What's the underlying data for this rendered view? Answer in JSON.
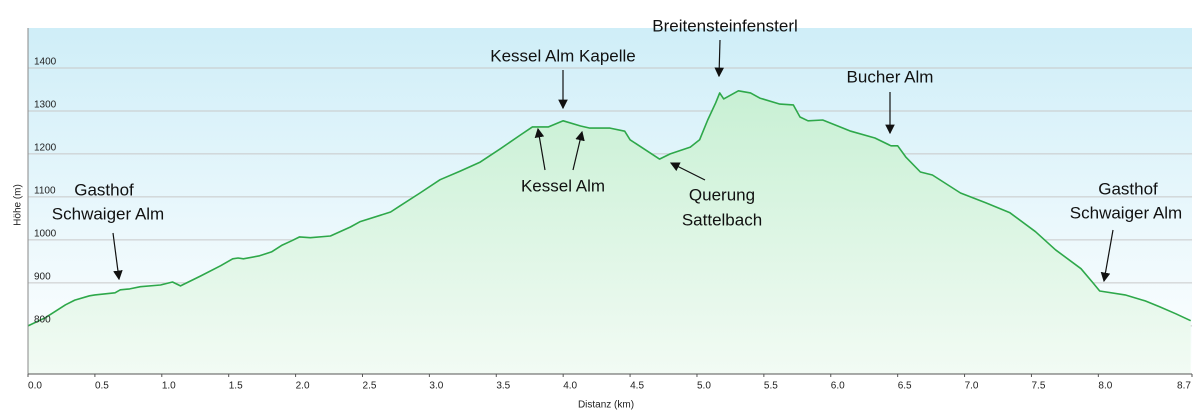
{
  "chart_data": {
    "type": "line",
    "xlabel": "Distanz  (km)",
    "ylabel": "Höhe (m)",
    "xlim": [
      0,
      8.7
    ],
    "ylim": [
      688,
      1493
    ],
    "xticks": [
      {
        "value": 0,
        "label": "0.0"
      },
      0.5,
      {
        "value": 1,
        "label": "1.0"
      },
      1.5,
      {
        "value": 2,
        "label": "2.0"
      },
      2.5,
      {
        "value": 3,
        "label": "3.0"
      },
      3.5,
      {
        "value": 4,
        "label": "4.0"
      },
      4.5,
      {
        "value": 5,
        "label": "5.0"
      },
      5.5,
      {
        "value": 6,
        "label": "6.0"
      },
      6.5,
      {
        "value": 7,
        "label": "7.0"
      },
      7.5,
      {
        "value": 8,
        "label": "8.0"
      },
      8.7
    ],
    "yticks": [
      800,
      900,
      1000,
      1100,
      1200,
      1300,
      1400
    ],
    "grid": true,
    "series": [
      {
        "color": "#2ea84a",
        "x": [
          0,
          0.13,
          0.28,
          0.35,
          0.46,
          0.5,
          0.65,
          0.69,
          0.76,
          0.84,
          0.99,
          1.08,
          1.14,
          1.29,
          1.44,
          1.53,
          1.57,
          1.61,
          1.73,
          1.82,
          1.9,
          1.97,
          2.03,
          2.11,
          2.26,
          2.41,
          2.48,
          2.71,
          2.78,
          2.93,
          3.08,
          3.23,
          3.38,
          3.53,
          3.68,
          3.77,
          3.89,
          4.0,
          4.13,
          4.2,
          4.35,
          4.46,
          4.5,
          4.72,
          4.8,
          4.95,
          5.02,
          5.08,
          5.14,
          5.17,
          5.2,
          5.31,
          5.4,
          5.47,
          5.62,
          5.72,
          5.77,
          5.83,
          5.94,
          6.15,
          6.33,
          6.45,
          6.5,
          6.56,
          6.67,
          6.76,
          6.97,
          7.16,
          7.34,
          7.53,
          7.68,
          7.87,
          7.96,
          8.01,
          8.2,
          8.35,
          8.46,
          8.58,
          8.69
        ],
        "values": [
          800,
          819,
          849,
          860,
          870,
          872,
          877,
          884,
          886,
          891,
          895,
          902,
          893,
          916,
          940,
          956,
          958,
          956,
          963,
          972,
          988,
          998,
          1007,
          1005,
          1009,
          1030,
          1042,
          1065,
          1079,
          1109,
          1140,
          1160,
          1181,
          1212,
          1244,
          1263,
          1263,
          1277,
          1265,
          1260,
          1260,
          1253,
          1233,
          1188,
          1200,
          1216,
          1233,
          1279,
          1319,
          1342,
          1328,
          1347,
          1342,
          1330,
          1316,
          1314,
          1286,
          1277,
          1279,
          1253,
          1237,
          1219,
          1219,
          1193,
          1158,
          1151,
          1109,
          1086,
          1063,
          1019,
          977,
          933,
          900,
          881,
          872,
          858,
          844,
          828,
          812
        ]
      }
    ],
    "annotations": [
      {
        "lines": [
          "Gasthof",
          "Schwaiger Alm"
        ]
      },
      {
        "lines": [
          "Kessel Alm Kapelle"
        ]
      },
      {
        "lines": [
          "Breitensteinfensterl"
        ]
      },
      {
        "lines": [
          "Bucher Alm"
        ]
      },
      {
        "lines": [
          "Kessel Alm"
        ]
      },
      {
        "lines": [
          "Querung",
          "Sattelbach"
        ]
      },
      {
        "lines": [
          "Gasthof",
          "Schwaiger Alm"
        ]
      }
    ]
  }
}
